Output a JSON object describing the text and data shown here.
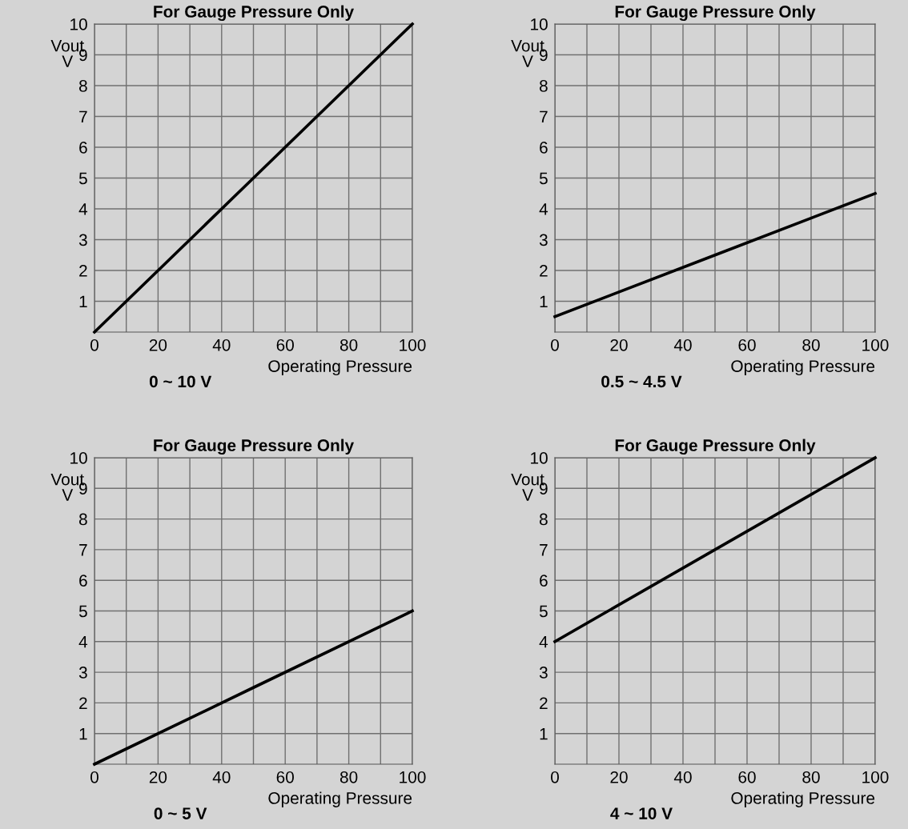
{
  "chart_data": [
    {
      "type": "line",
      "title": "For Gauge Pressure Only",
      "xlabel": "Operating Pressure",
      "ylabel": "Vout\nV",
      "annotations": [
        "0 ~ 10 V"
      ],
      "x": [
        0,
        50,
        100
      ],
      "series": [
        {
          "color": "#000000",
          "values": [
            0,
            5,
            10
          ]
        }
      ],
      "xlim": [
        0,
        100
      ],
      "ylim": [
        0,
        10
      ],
      "xticks": [
        0,
        {
          "value": 10,
          "label": null
        },
        20,
        {
          "value": 30,
          "label": null
        },
        40,
        {
          "value": 50,
          "label": null
        },
        60,
        {
          "value": 70,
          "label": null
        },
        80,
        {
          "value": 90,
          "label": null
        },
        100
      ],
      "yticks": [
        1,
        2,
        3,
        4,
        5,
        6,
        7,
        8,
        9,
        10
      ],
      "grid": true,
      "line_style": "solid"
    },
    {
      "type": "line",
      "title": "For Gauge Pressure Only",
      "xlabel": "Operating Pressure",
      "ylabel": "Vout\nV",
      "annotations": [
        "0.5 ~ 4.5 V"
      ],
      "x": [
        0,
        50,
        100
      ],
      "series": [
        {
          "color": "#000000",
          "values": [
            0.5,
            2.5,
            4.5
          ]
        }
      ],
      "xlim": [
        0,
        100
      ],
      "ylim": [
        0,
        10
      ],
      "xticks": [
        0,
        {
          "value": 10,
          "label": null
        },
        20,
        {
          "value": 30,
          "label": null
        },
        40,
        {
          "value": 50,
          "label": null
        },
        60,
        {
          "value": 70,
          "label": null
        },
        80,
        {
          "value": 90,
          "label": null
        },
        100
      ],
      "yticks": [
        1,
        2,
        3,
        4,
        5,
        6,
        7,
        8,
        9,
        10
      ],
      "grid": true,
      "line_style": "solid"
    },
    {
      "type": "line",
      "title": "For Gauge Pressure Only",
      "xlabel": "Operating Pressure",
      "ylabel": "Vout\nV",
      "annotations": [
        "0 ~ 5 V"
      ],
      "x": [
        0,
        50,
        100
      ],
      "series": [
        {
          "color": "#000000",
          "values": [
            0,
            2.5,
            5
          ]
        }
      ],
      "xlim": [
        0,
        100
      ],
      "ylim": [
        0,
        10
      ],
      "xticks": [
        0,
        {
          "value": 10,
          "label": null
        },
        20,
        {
          "value": 30,
          "label": null
        },
        40,
        {
          "value": 50,
          "label": null
        },
        60,
        {
          "value": 70,
          "label": null
        },
        80,
        {
          "value": 90,
          "label": null
        },
        100
      ],
      "yticks": [
        1,
        2,
        3,
        4,
        5,
        6,
        7,
        8,
        9,
        10
      ],
      "grid": true,
      "line_style": "solid"
    },
    {
      "type": "line",
      "title": "For Gauge Pressure Only",
      "xlabel": "Operating Pressure",
      "ylabel": "Vout\nV",
      "annotations": [
        "4 ~ 10 V"
      ],
      "x": [
        0,
        50,
        100
      ],
      "series": [
        {
          "color": "#000000",
          "values": [
            4,
            7,
            10
          ]
        }
      ],
      "xlim": [
        0,
        100
      ],
      "ylim": [
        0,
        10
      ],
      "xticks": [
        0,
        {
          "value": 10,
          "label": null
        },
        20,
        {
          "value": 30,
          "label": null
        },
        40,
        {
          "value": 50,
          "label": null
        },
        60,
        {
          "value": 70,
          "label": null
        },
        80,
        {
          "value": 90,
          "label": null
        },
        100
      ],
      "yticks": [
        1,
        2,
        3,
        4,
        5,
        6,
        7,
        8,
        9,
        10
      ],
      "grid": true,
      "line_style": "solid"
    }
  ]
}
